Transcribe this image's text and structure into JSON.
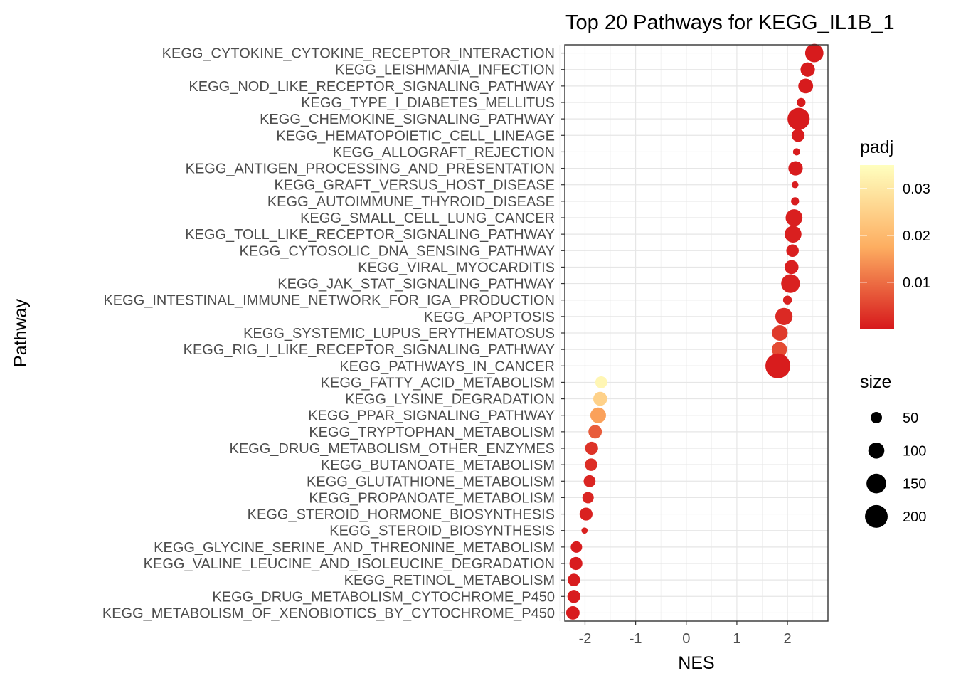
{
  "chart_data": {
    "type": "scatter",
    "title": "Top 20 Pathways for  KEGG_IL1B_1",
    "xlabel": "NES",
    "ylabel": "Pathway",
    "xlim": [
      -2.4,
      2.8
    ],
    "x_ticks": [
      -2,
      -1,
      0,
      1,
      2
    ],
    "grid": true,
    "categories": [
      "KEGG_CYTOKINE_CYTOKINE_RECEPTOR_INTERACTION",
      "KEGG_LEISHMANIA_INFECTION",
      "KEGG_NOD_LIKE_RECEPTOR_SIGNALING_PATHWAY",
      "KEGG_TYPE_I_DIABETES_MELLITUS",
      "KEGG_CHEMOKINE_SIGNALING_PATHWAY",
      "KEGG_HEMATOPOIETIC_CELL_LINEAGE",
      "KEGG_ALLOGRAFT_REJECTION",
      "KEGG_ANTIGEN_PROCESSING_AND_PRESENTATION",
      "KEGG_GRAFT_VERSUS_HOST_DISEASE",
      "KEGG_AUTOIMMUNE_THYROID_DISEASE",
      "KEGG_SMALL_CELL_LUNG_CANCER",
      "KEGG_TOLL_LIKE_RECEPTOR_SIGNALING_PATHWAY",
      "KEGG_CYTOSOLIC_DNA_SENSING_PATHWAY",
      "KEGG_VIRAL_MYOCARDITIS",
      "KEGG_JAK_STAT_SIGNALING_PATHWAY",
      "KEGG_INTESTINAL_IMMUNE_NETWORK_FOR_IGA_PRODUCTION",
      "KEGG_APOPTOSIS",
      "KEGG_SYSTEMIC_LUPUS_ERYTHEMATOSUS",
      "KEGG_RIG_I_LIKE_RECEPTOR_SIGNALING_PATHWAY",
      "KEGG_PATHWAYS_IN_CANCER",
      "KEGG_FATTY_ACID_METABOLISM",
      "KEGG_LYSINE_DEGRADATION",
      "KEGG_PPAR_SIGNALING_PATHWAY",
      "KEGG_TRYPTOPHAN_METABOLISM",
      "KEGG_DRUG_METABOLISM_OTHER_ENZYMES",
      "KEGG_BUTANOATE_METABOLISM",
      "KEGG_GLUTATHIONE_METABOLISM",
      "KEGG_PROPANOATE_METABOLISM",
      "KEGG_STEROID_HORMONE_BIOSYNTHESIS",
      "KEGG_STEROID_BIOSYNTHESIS",
      "KEGG_GLYCINE_SERINE_AND_THREONINE_METABOLISM",
      "KEGG_VALINE_LEUCINE_AND_ISOLEUCINE_DEGRADATION",
      "KEGG_RETINOL_METABOLISM",
      "KEGG_DRUG_METABOLISM_CYTOCHROME_P450",
      "KEGG_METABOLISM_OF_XENOBIOTICS_BY_CYTOCHROME_P450"
    ],
    "nes": [
      2.53,
      2.4,
      2.36,
      2.27,
      2.22,
      2.21,
      2.18,
      2.16,
      2.15,
      2.15,
      2.13,
      2.11,
      2.1,
      2.08,
      2.06,
      2.0,
      1.93,
      1.85,
      1.84,
      1.81,
      -1.68,
      -1.7,
      -1.74,
      -1.8,
      -1.87,
      -1.88,
      -1.91,
      -1.94,
      -1.98,
      -2.01,
      -2.17,
      -2.18,
      -2.22,
      -2.22,
      -2.24
    ],
    "size": [
      130,
      80,
      85,
      30,
      190,
      65,
      20,
      80,
      18,
      25,
      110,
      110,
      60,
      75,
      135,
      30,
      115,
      95,
      90,
      240,
      55,
      75,
      95,
      70,
      65,
      60,
      55,
      50,
      65,
      15,
      50,
      65,
      60,
      65,
      70
    ],
    "padj": [
      0.0003,
      0.0003,
      0.0003,
      0.0003,
      0.0003,
      0.0005,
      0.0005,
      0.0005,
      0.0005,
      0.0005,
      0.0008,
      0.0008,
      0.0008,
      0.0008,
      0.001,
      0.001,
      0.002,
      0.004,
      0.006,
      0.0004,
      0.033,
      0.025,
      0.016,
      0.008,
      0.003,
      0.0025,
      0.0015,
      0.0015,
      0.001,
      0.001,
      0.0005,
      0.0005,
      0.0005,
      0.0005,
      0.0005
    ],
    "legend": {
      "placement": "right",
      "color_title": "padj",
      "color_range": [
        0.0001,
        0.035
      ],
      "color_ticks": [
        "0.03",
        "0.02",
        "0.01"
      ],
      "color_tick_values": [
        0.03,
        0.02,
        0.01
      ],
      "colors": [
        "#d7191c",
        "#fdae61",
        "#ffffbf"
      ],
      "size_title": "size",
      "size_labels": [
        "50",
        "100",
        "150",
        "200"
      ],
      "size_values": [
        50,
        100,
        150,
        200
      ],
      "size_color": "#000000"
    }
  }
}
